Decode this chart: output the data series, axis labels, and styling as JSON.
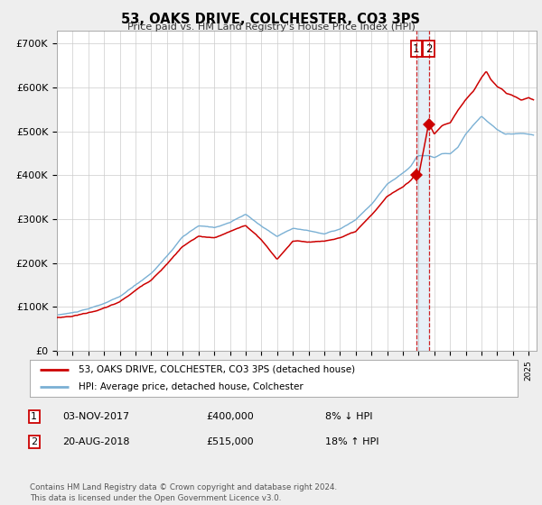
{
  "title": "53, OAKS DRIVE, COLCHESTER, CO3 3PS",
  "subtitle": "Price paid vs. HM Land Registry's House Price Index (HPI)",
  "ylabel_ticks": [
    "£0",
    "£100K",
    "£200K",
    "£300K",
    "£400K",
    "£500K",
    "£600K",
    "£700K"
  ],
  "ytick_values": [
    0,
    100000,
    200000,
    300000,
    400000,
    500000,
    600000,
    700000
  ],
  "ylim": [
    0,
    730000
  ],
  "xlim_start": 1995.0,
  "xlim_end": 2025.5,
  "hpi_color": "#7ab0d4",
  "price_color": "#cc0000",
  "marker1_year": 2017.84,
  "marker1_price": 400000,
  "marker2_year": 2018.64,
  "marker2_price": 515000,
  "legend_label1": "53, OAKS DRIVE, COLCHESTER, CO3 3PS (detached house)",
  "legend_label2": "HPI: Average price, detached house, Colchester",
  "table_rows": [
    [
      "1",
      "03-NOV-2017",
      "£400,000",
      "8% ↓ HPI"
    ],
    [
      "2",
      "20-AUG-2018",
      "£515,000",
      "18% ↑ HPI"
    ]
  ],
  "footnote": "Contains HM Land Registry data © Crown copyright and database right 2024.\nThis data is licensed under the Open Government Licence v3.0.",
  "background_color": "#eeeeee",
  "plot_bg_color": "#ffffff",
  "grid_color": "#cccccc"
}
